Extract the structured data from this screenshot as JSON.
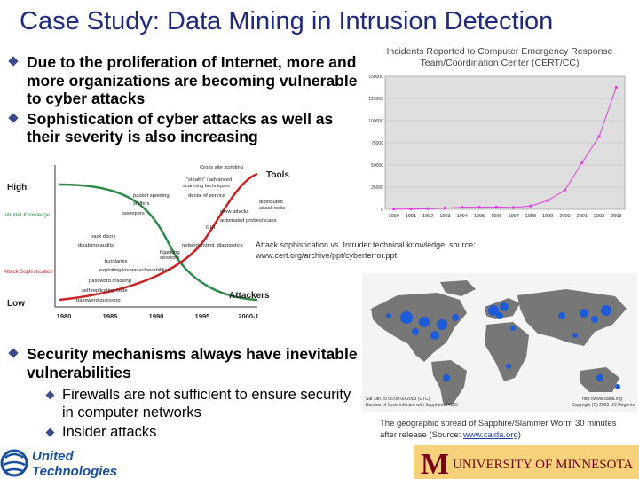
{
  "slide": {
    "title": "Case Study: Data Mining in Intrusion Detection",
    "bullets": [
      "Due to the proliferation of Internet, more and more organizations are becoming vulnerable to cyber attacks",
      "Sophistication of cyber attacks as well as their severity is also increasing"
    ],
    "bullet2": "Security mechanisms always have inevitable vulnerabilities",
    "sub_bullets": [
      "Firewalls are not sufficient to ensure security in computer networks",
      "Insider attacks"
    ],
    "attack_caption": "Attack sophistication vs. Intruder technical knowledge, source: www.cert.org/archive/ppt/cyberterror.ppt",
    "map_caption_text": "The geographic spread of Sapphire/Slammer Worm 30 minutes after release (Source: ",
    "map_caption_link": "www.caida.org",
    "map_caption_end": ")",
    "ut_name": [
      "United",
      "Technologies"
    ],
    "umn_name": "UNIVERSITY OF MINNESOTA",
    "umn_letter": "M",
    "map_time": "Sat Jan 25 06:00:00 2003 (UTC)",
    "map_infect": "Number of hosts infected with Sapphire: 74855",
    "map_credit": "http://www.caida.org",
    "map_copyright": "Copyright (C) 2003 UC Regents"
  },
  "chart_data": [
    {
      "type": "line",
      "title": "Incidents Reported to Computer Emergency Response Team/Coordination Center (CERT/CC)",
      "x": [
        "1990",
        "1991",
        "1992",
        "1993",
        "1994",
        "1995",
        "1996",
        "1997",
        "1998",
        "1999",
        "2000",
        "2001",
        "2002",
        "2003"
      ],
      "values": [
        252,
        406,
        773,
        1334,
        2340,
        2412,
        2573,
        2134,
        3734,
        9859,
        21756,
        52658,
        82094,
        137529
      ],
      "yticks": [
        "0",
        "25000",
        "50000",
        "75000",
        "100000",
        "125000",
        "150000"
      ],
      "ylim": [
        0,
        150000
      ],
      "color": "#e040e0"
    },
    {
      "type": "line",
      "title": "Attack sophistication vs. Intruder technical knowledge",
      "x_ticks": [
        "1980",
        "1985",
        "1990",
        "1995",
        "2000-1"
      ],
      "y_high": "High",
      "y_low": "Low",
      "legend_intruder": "Intruder Knowledge",
      "legend_attack": "Attack Sophistication",
      "tools_label": "Tools",
      "attackers_label": "Attackers",
      "series": [
        {
          "name": "Intruder Knowledge",
          "color": "#2f8a4a",
          "trend": "decreasing"
        },
        {
          "name": "Attack Sophistication",
          "color": "#cc2222",
          "trend": "increasing"
        }
      ],
      "annotations": [
        "Cross site scripting",
        "\"stealth\" / advanced",
        "scanning techniques",
        "packet spoofing",
        "denial of service",
        "sniffers",
        "distributed",
        "attack tools",
        "www attacks",
        "sweepers",
        "automated probes/scans",
        "GUI",
        "back doors",
        "network mgmt. diagnostics",
        "disabling audits",
        "hijacking",
        "sessions",
        "burglaries",
        "exploiting known vulnerabilities",
        "password cracking",
        "self-replicating code",
        "password guessing"
      ]
    }
  ]
}
